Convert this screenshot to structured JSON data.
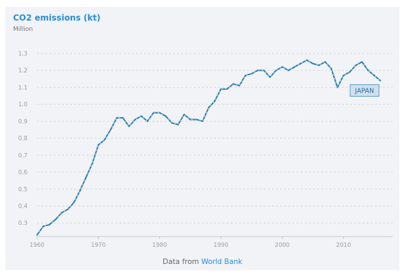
{
  "footer": {
    "prefix": "Data from ",
    "link": "World Bank"
  },
  "chart_data": {
    "type": "line",
    "title": "CO2 emissions (kt)",
    "subtitle": "Million",
    "xlabel": "",
    "ylabel": "",
    "xlim": [
      1960,
      2018
    ],
    "ylim": [
      0.22,
      1.34
    ],
    "x_ticks": [
      1960,
      1970,
      1980,
      1990,
      2000,
      2010
    ],
    "y_ticks": [
      0.3,
      0.4,
      0.5,
      0.6,
      0.7,
      0.8,
      0.9,
      1.0,
      1.1,
      1.2,
      1.3
    ],
    "y_tick_labels": [
      "0.3",
      "0.4",
      "0.5",
      "0.6",
      "0.7",
      "0.8",
      "0.9",
      "1.0",
      "1.1",
      "1.2",
      "1.3"
    ],
    "grid": true,
    "color": "#2d7fae",
    "series": [
      {
        "name": "JAPAN",
        "x": [
          1960,
          1961,
          1962,
          1963,
          1964,
          1965,
          1966,
          1967,
          1968,
          1969,
          1970,
          1971,
          1972,
          1973,
          1974,
          1975,
          1976,
          1977,
          1978,
          1979,
          1980,
          1981,
          1982,
          1983,
          1984,
          1985,
          1986,
          1987,
          1988,
          1989,
          1990,
          1991,
          1992,
          1993,
          1994,
          1995,
          1996,
          1997,
          1998,
          1999,
          2000,
          2001,
          2002,
          2003,
          2004,
          2005,
          2006,
          2007,
          2008,
          2009,
          2010,
          2011,
          2012,
          2013,
          2014,
          2015,
          2016
        ],
        "values": [
          0.23,
          0.28,
          0.29,
          0.32,
          0.36,
          0.38,
          0.42,
          0.49,
          0.57,
          0.65,
          0.76,
          0.79,
          0.85,
          0.92,
          0.92,
          0.87,
          0.91,
          0.93,
          0.9,
          0.95,
          0.95,
          0.93,
          0.89,
          0.88,
          0.94,
          0.91,
          0.91,
          0.9,
          0.98,
          1.02,
          1.09,
          1.09,
          1.12,
          1.11,
          1.17,
          1.18,
          1.2,
          1.2,
          1.16,
          1.2,
          1.22,
          1.2,
          1.22,
          1.24,
          1.26,
          1.24,
          1.23,
          1.25,
          1.21,
          1.1,
          1.17,
          1.19,
          1.23,
          1.25,
          1.2,
          1.17,
          1.14
        ]
      }
    ]
  }
}
